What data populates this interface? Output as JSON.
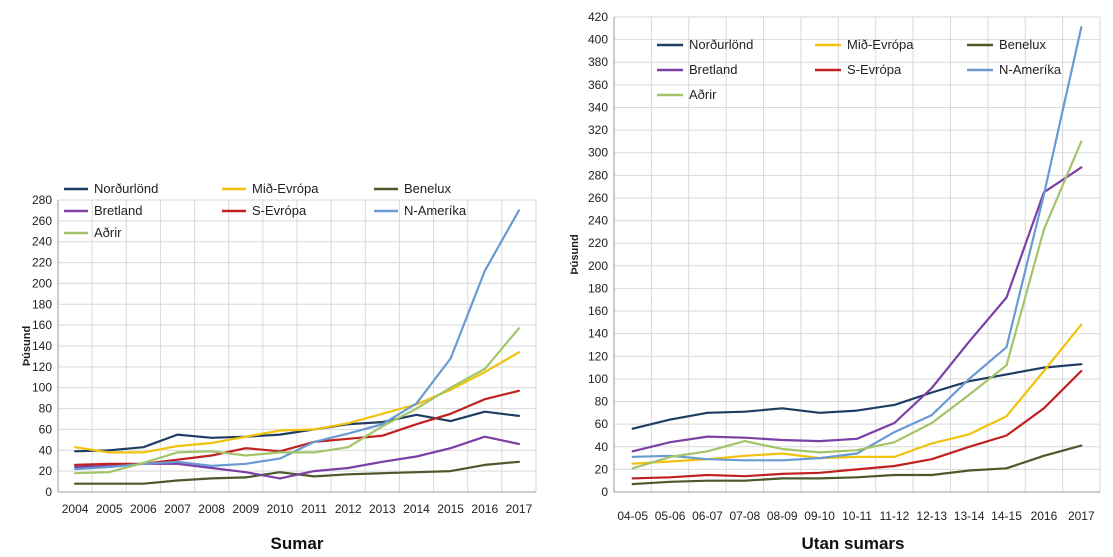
{
  "chart_data": [
    {
      "type": "line",
      "caption": "Sumar",
      "ylabel": "Þúsund",
      "ylim": [
        0,
        280
      ],
      "yticks": [
        0,
        20,
        40,
        60,
        80,
        100,
        120,
        140,
        160,
        180,
        200,
        220,
        240,
        260,
        280
      ],
      "grid": true,
      "legend_position": "top-left",
      "x": [
        "2004",
        "2005",
        "2006",
        "2007",
        "2008",
        "2009",
        "2010",
        "2011",
        "2012",
        "2013",
        "2014",
        "2015",
        "2016",
        "2017"
      ],
      "series": [
        {
          "name": "Norðurlönd",
          "color": "#1f3d63",
          "values": [
            39,
            40,
            43,
            55,
            52,
            53,
            55,
            60,
            65,
            67,
            74,
            68,
            77,
            73
          ]
        },
        {
          "name": "Mið-Evrópa",
          "color": "#f2c20c",
          "values": [
            43,
            38,
            38,
            44,
            47,
            53,
            59,
            60,
            66,
            75,
            84,
            98,
            115,
            134
          ]
        },
        {
          "name": "Benelux",
          "color": "#4a5a28",
          "values": [
            8,
            8,
            8,
            11,
            13,
            14,
            19,
            15,
            17,
            18,
            19,
            20,
            26,
            29
          ]
        },
        {
          "name": "Bretland",
          "color": "#7b3fa6",
          "values": [
            24,
            25,
            27,
            27,
            23,
            19,
            13,
            20,
            23,
            29,
            34,
            42,
            53,
            46
          ]
        },
        {
          "name": "S-Evrópa",
          "color": "#c0211f",
          "values": [
            26,
            27,
            27,
            31,
            35,
            42,
            39,
            48,
            51,
            54,
            65,
            75,
            89,
            97
          ]
        },
        {
          "name": "N-Ameríka",
          "color": "#6a9ad2",
          "values": [
            22,
            24,
            27,
            29,
            25,
            27,
            32,
            48,
            56,
            65,
            85,
            128,
            212,
            270
          ]
        },
        {
          "name": "Aðrir",
          "color": "#a3c46a",
          "values": [
            18,
            19,
            28,
            38,
            39,
            35,
            38,
            38,
            43,
            63,
            80,
            100,
            118,
            157
          ]
        }
      ]
    },
    {
      "type": "line",
      "caption": "Utan sumars",
      "ylabel": "Þúsund",
      "ylim": [
        0,
        420
      ],
      "yticks": [
        0,
        20,
        40,
        60,
        80,
        100,
        120,
        140,
        160,
        180,
        200,
        220,
        240,
        260,
        280,
        300,
        320,
        340,
        360,
        380,
        400,
        420
      ],
      "grid": true,
      "legend_position": "top-left",
      "x": [
        "04-05",
        "05-06",
        "06-07",
        "07-08",
        "08-09",
        "09-10",
        "10-11",
        "11-12",
        "12-13",
        "13-14",
        "14-15",
        "2016",
        "2017"
      ],
      "series": [
        {
          "name": "Norðurlönd",
          "color": "#1f3d63",
          "values": [
            56,
            64,
            70,
            71,
            74,
            70,
            72,
            77,
            88,
            98,
            104,
            110,
            113
          ]
        },
        {
          "name": "Mið-Evrópa",
          "color": "#f2c20c",
          "values": [
            25,
            27,
            29,
            32,
            34,
            30,
            31,
            31,
            43,
            51,
            67,
            107,
            148
          ]
        },
        {
          "name": "Benelux",
          "color": "#4a5a28",
          "values": [
            7,
            9,
            10,
            10,
            12,
            12,
            13,
            15,
            15,
            19,
            21,
            32,
            41
          ]
        },
        {
          "name": "Bretland",
          "color": "#7b3fa6",
          "values": [
            36,
            44,
            49,
            48,
            46,
            45,
            47,
            61,
            92,
            133,
            172,
            265,
            287
          ]
        },
        {
          "name": "S-Evrópa",
          "color": "#c0211f",
          "values": [
            12,
            13,
            15,
            14,
            16,
            17,
            20,
            23,
            29,
            40,
            50,
            74,
            107
          ]
        },
        {
          "name": "N-Ameríka",
          "color": "#6a9ad2",
          "values": [
            31,
            32,
            29,
            28,
            28,
            30,
            34,
            53,
            68,
            100,
            128,
            263,
            411
          ]
        },
        {
          "name": "Aðrir",
          "color": "#a3c46a",
          "values": [
            21,
            31,
            36,
            45,
            38,
            35,
            37,
            44,
            61,
            86,
            112,
            232,
            310
          ]
        }
      ]
    }
  ]
}
